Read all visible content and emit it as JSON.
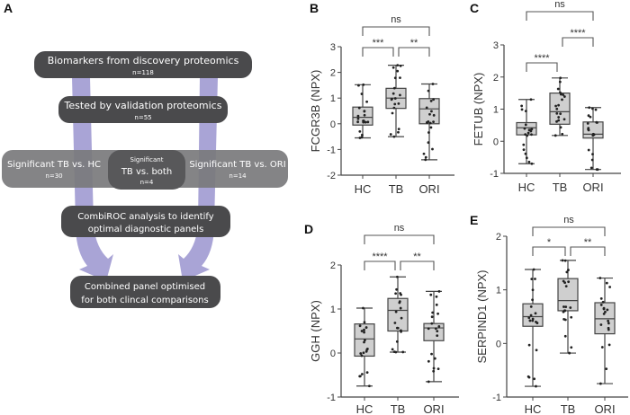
{
  "panel_labels": [
    "A",
    "B",
    "C",
    "D",
    "E"
  ],
  "flowchart": {
    "steps": [
      {
        "title": "Biomarkers from discovery proteomics",
        "n": "n=118"
      },
      {
        "title": "Tested by validation proteomics",
        "n": "n=55"
      },
      {
        "left_title": "Significant TB vs. HC",
        "left_n": "n=30",
        "mid_title_1": "Significant",
        "mid_title_2": "TB vs. both",
        "mid_n": "n=4",
        "right_title": "Significant TB vs. ORI",
        "right_n": "n=14"
      },
      {
        "line1": "CombiROC analysis to identify",
        "line2": "optimal diagnostic panels"
      },
      {
        "line1": "Combined panel optimised",
        "line2": "for both clincal comparisons"
      }
    ],
    "colors": {
      "box_dark": "#4a4a4c",
      "box_light": "#7a7a7c",
      "arrow": "#9a94cf"
    }
  },
  "chart_data": [
    {
      "panel": "B",
      "type": "box",
      "ylabel": "FCGR3B (NPX)",
      "categories": [
        "HC",
        "TB",
        "ORI"
      ],
      "ylim": [
        -2,
        3
      ],
      "yticks": [
        -2,
        -1,
        0,
        1,
        2,
        3
      ],
      "boxes": [
        {
          "min": -0.55,
          "q1": -0.05,
          "median": 0.25,
          "q3": 0.65,
          "max": 1.52
        },
        {
          "min": -0.5,
          "q1": 0.6,
          "median": 1.0,
          "q3": 1.38,
          "max": 2.28
        },
        {
          "min": -1.4,
          "q1": 0.0,
          "median": 0.58,
          "q3": 0.98,
          "max": 1.55
        }
      ],
      "comparisons": [
        {
          "pair": [
            "HC",
            "ORI"
          ],
          "label": "ns"
        },
        {
          "pair": [
            "HC",
            "TB"
          ],
          "label": "***"
        },
        {
          "pair": [
            "TB",
            "ORI"
          ],
          "label": "**"
        }
      ]
    },
    {
      "panel": "C",
      "type": "box",
      "ylabel": "FETUB (NPX)",
      "categories": [
        "HC",
        "TB",
        "ORI"
      ],
      "ylim": [
        -1,
        3
      ],
      "yticks": [
        -1,
        0,
        1,
        2,
        3
      ],
      "boxes": [
        {
          "min": -0.7,
          "q1": 0.2,
          "median": 0.42,
          "q3": 0.58,
          "max": 1.3
        },
        {
          "min": 0.18,
          "q1": 0.53,
          "median": 0.92,
          "q3": 1.5,
          "max": 1.97
        },
        {
          "min": -0.88,
          "q1": 0.1,
          "median": 0.22,
          "q3": 0.6,
          "max": 1.05
        }
      ],
      "comparisons": [
        {
          "pair": [
            "HC",
            "ORI"
          ],
          "label": "ns"
        },
        {
          "pair": [
            "TB",
            "ORI"
          ],
          "label": "****"
        },
        {
          "pair": [
            "HC",
            "TB"
          ],
          "label": "****"
        }
      ]
    },
    {
      "panel": "D",
      "type": "box",
      "ylabel": "GGH (NPX)",
      "categories": [
        "HC",
        "TB",
        "ORI"
      ],
      "ylim": [
        -1,
        2
      ],
      "yticks": [
        -1,
        0,
        1,
        2
      ],
      "boxes": [
        {
          "min": -0.75,
          "q1": -0.07,
          "median": 0.32,
          "q3": 0.66,
          "max": 1.02
        },
        {
          "min": 0.02,
          "q1": 0.5,
          "median": 0.97,
          "q3": 1.24,
          "max": 1.73
        },
        {
          "min": -0.65,
          "q1": 0.28,
          "median": 0.57,
          "q3": 0.67,
          "max": 1.4
        }
      ],
      "comparisons": [
        {
          "pair": [
            "HC",
            "ORI"
          ],
          "label": "ns"
        },
        {
          "pair": [
            "HC",
            "TB"
          ],
          "label": "****"
        },
        {
          "pair": [
            "TB",
            "ORI"
          ],
          "label": "**"
        }
      ]
    },
    {
      "panel": "E",
      "type": "box",
      "ylabel": "SERPIND1 (NPX)",
      "categories": [
        "HC",
        "TB",
        "ORI"
      ],
      "ylim": [
        -1,
        2
      ],
      "yticks": [
        -1,
        0,
        1,
        2
      ],
      "boxes": [
        {
          "min": -0.8,
          "q1": 0.32,
          "median": 0.5,
          "q3": 0.74,
          "max": 1.38
        },
        {
          "min": -0.18,
          "q1": 0.61,
          "median": 0.8,
          "q3": 1.21,
          "max": 1.55
        },
        {
          "min": -0.75,
          "q1": 0.18,
          "median": 0.46,
          "q3": 0.76,
          "max": 1.22
        }
      ],
      "comparisons": [
        {
          "pair": [
            "HC",
            "ORI"
          ],
          "label": "ns"
        },
        {
          "pair": [
            "HC",
            "TB"
          ],
          "label": "*"
        },
        {
          "pair": [
            "TB",
            "ORI"
          ],
          "label": "**"
        }
      ]
    }
  ]
}
